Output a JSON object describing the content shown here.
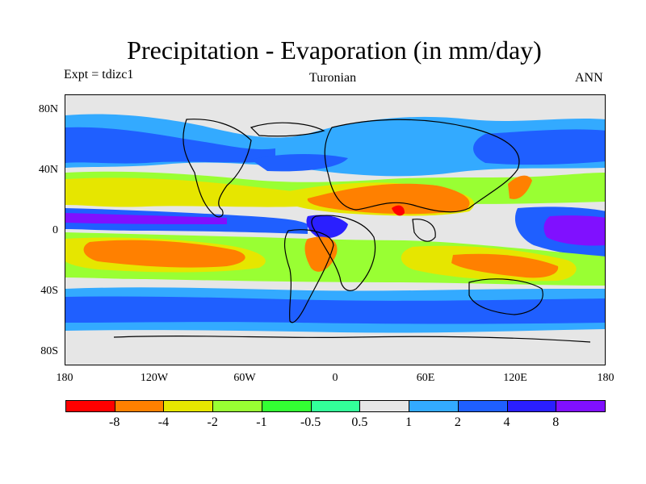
{
  "title": "Precipitation - Evaporation (in mm/day)",
  "left_subtitle": "Expt = tdizc1",
  "center_subtitle": "Turonian",
  "right_subtitle": "ANN",
  "map": {
    "lat_ticks": [
      "80N",
      "40N",
      "0",
      "40S",
      "80S"
    ],
    "lon_ticks": [
      "180",
      "120W",
      "60W",
      "0",
      "60E",
      "120E",
      "180"
    ],
    "background_color": "#e6e6e6"
  },
  "colorbar": {
    "colors": [
      "#ff0000",
      "#ff8000",
      "#e6e600",
      "#99ff33",
      "#33ff33",
      "#33ff99",
      "#e6e6e6",
      "#33aaff",
      "#1f5fff",
      "#2a1fff",
      "#8010ff"
    ],
    "labels": [
      "-8",
      "-4",
      "-2",
      "-1",
      "-0.5",
      "0.5",
      "1",
      "2",
      "4",
      "8"
    ]
  }
}
